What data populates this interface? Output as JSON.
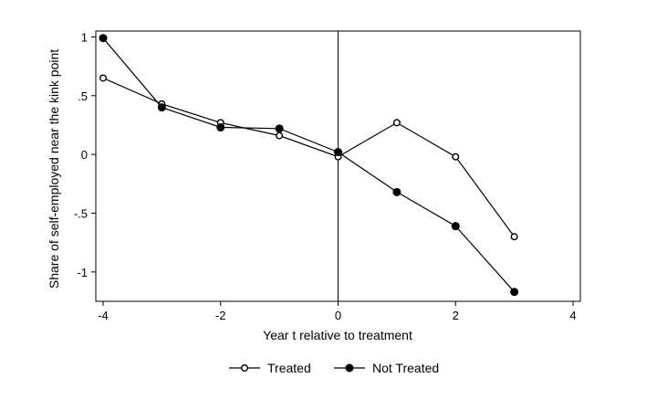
{
  "chart_data": {
    "type": "line",
    "title": "",
    "xlabel": "Year t relative to treatment",
    "ylabel": "Share of self-employed near the kink point",
    "xlim": [
      -4,
      4
    ],
    "ylim": [
      -1.25,
      1.05
    ],
    "x_ticks": [
      -4,
      -2,
      0,
      2,
      4
    ],
    "x_tick_labels": [
      "-4",
      "-2",
      "0",
      "2",
      "4"
    ],
    "y_ticks": [
      1,
      0.5,
      0,
      -0.5,
      -1
    ],
    "y_tick_labels": [
      "1",
      ".5",
      "0",
      "-.5",
      "-1"
    ],
    "vertical_reference_line": 0,
    "grid": false,
    "legend_position": "bottom",
    "x": [
      -4,
      -3,
      -2,
      -1,
      0,
      1,
      2,
      3
    ],
    "series": [
      {
        "name": "Treated",
        "marker": "hollow-circle",
        "values": [
          0.65,
          0.43,
          0.27,
          0.16,
          -0.02,
          0.27,
          -0.02,
          -0.7
        ]
      },
      {
        "name": "Not Treated",
        "marker": "filled-circle",
        "values": [
          0.99,
          0.4,
          0.23,
          0.22,
          0.02,
          -0.32,
          -0.61,
          -1.17
        ]
      }
    ]
  }
}
